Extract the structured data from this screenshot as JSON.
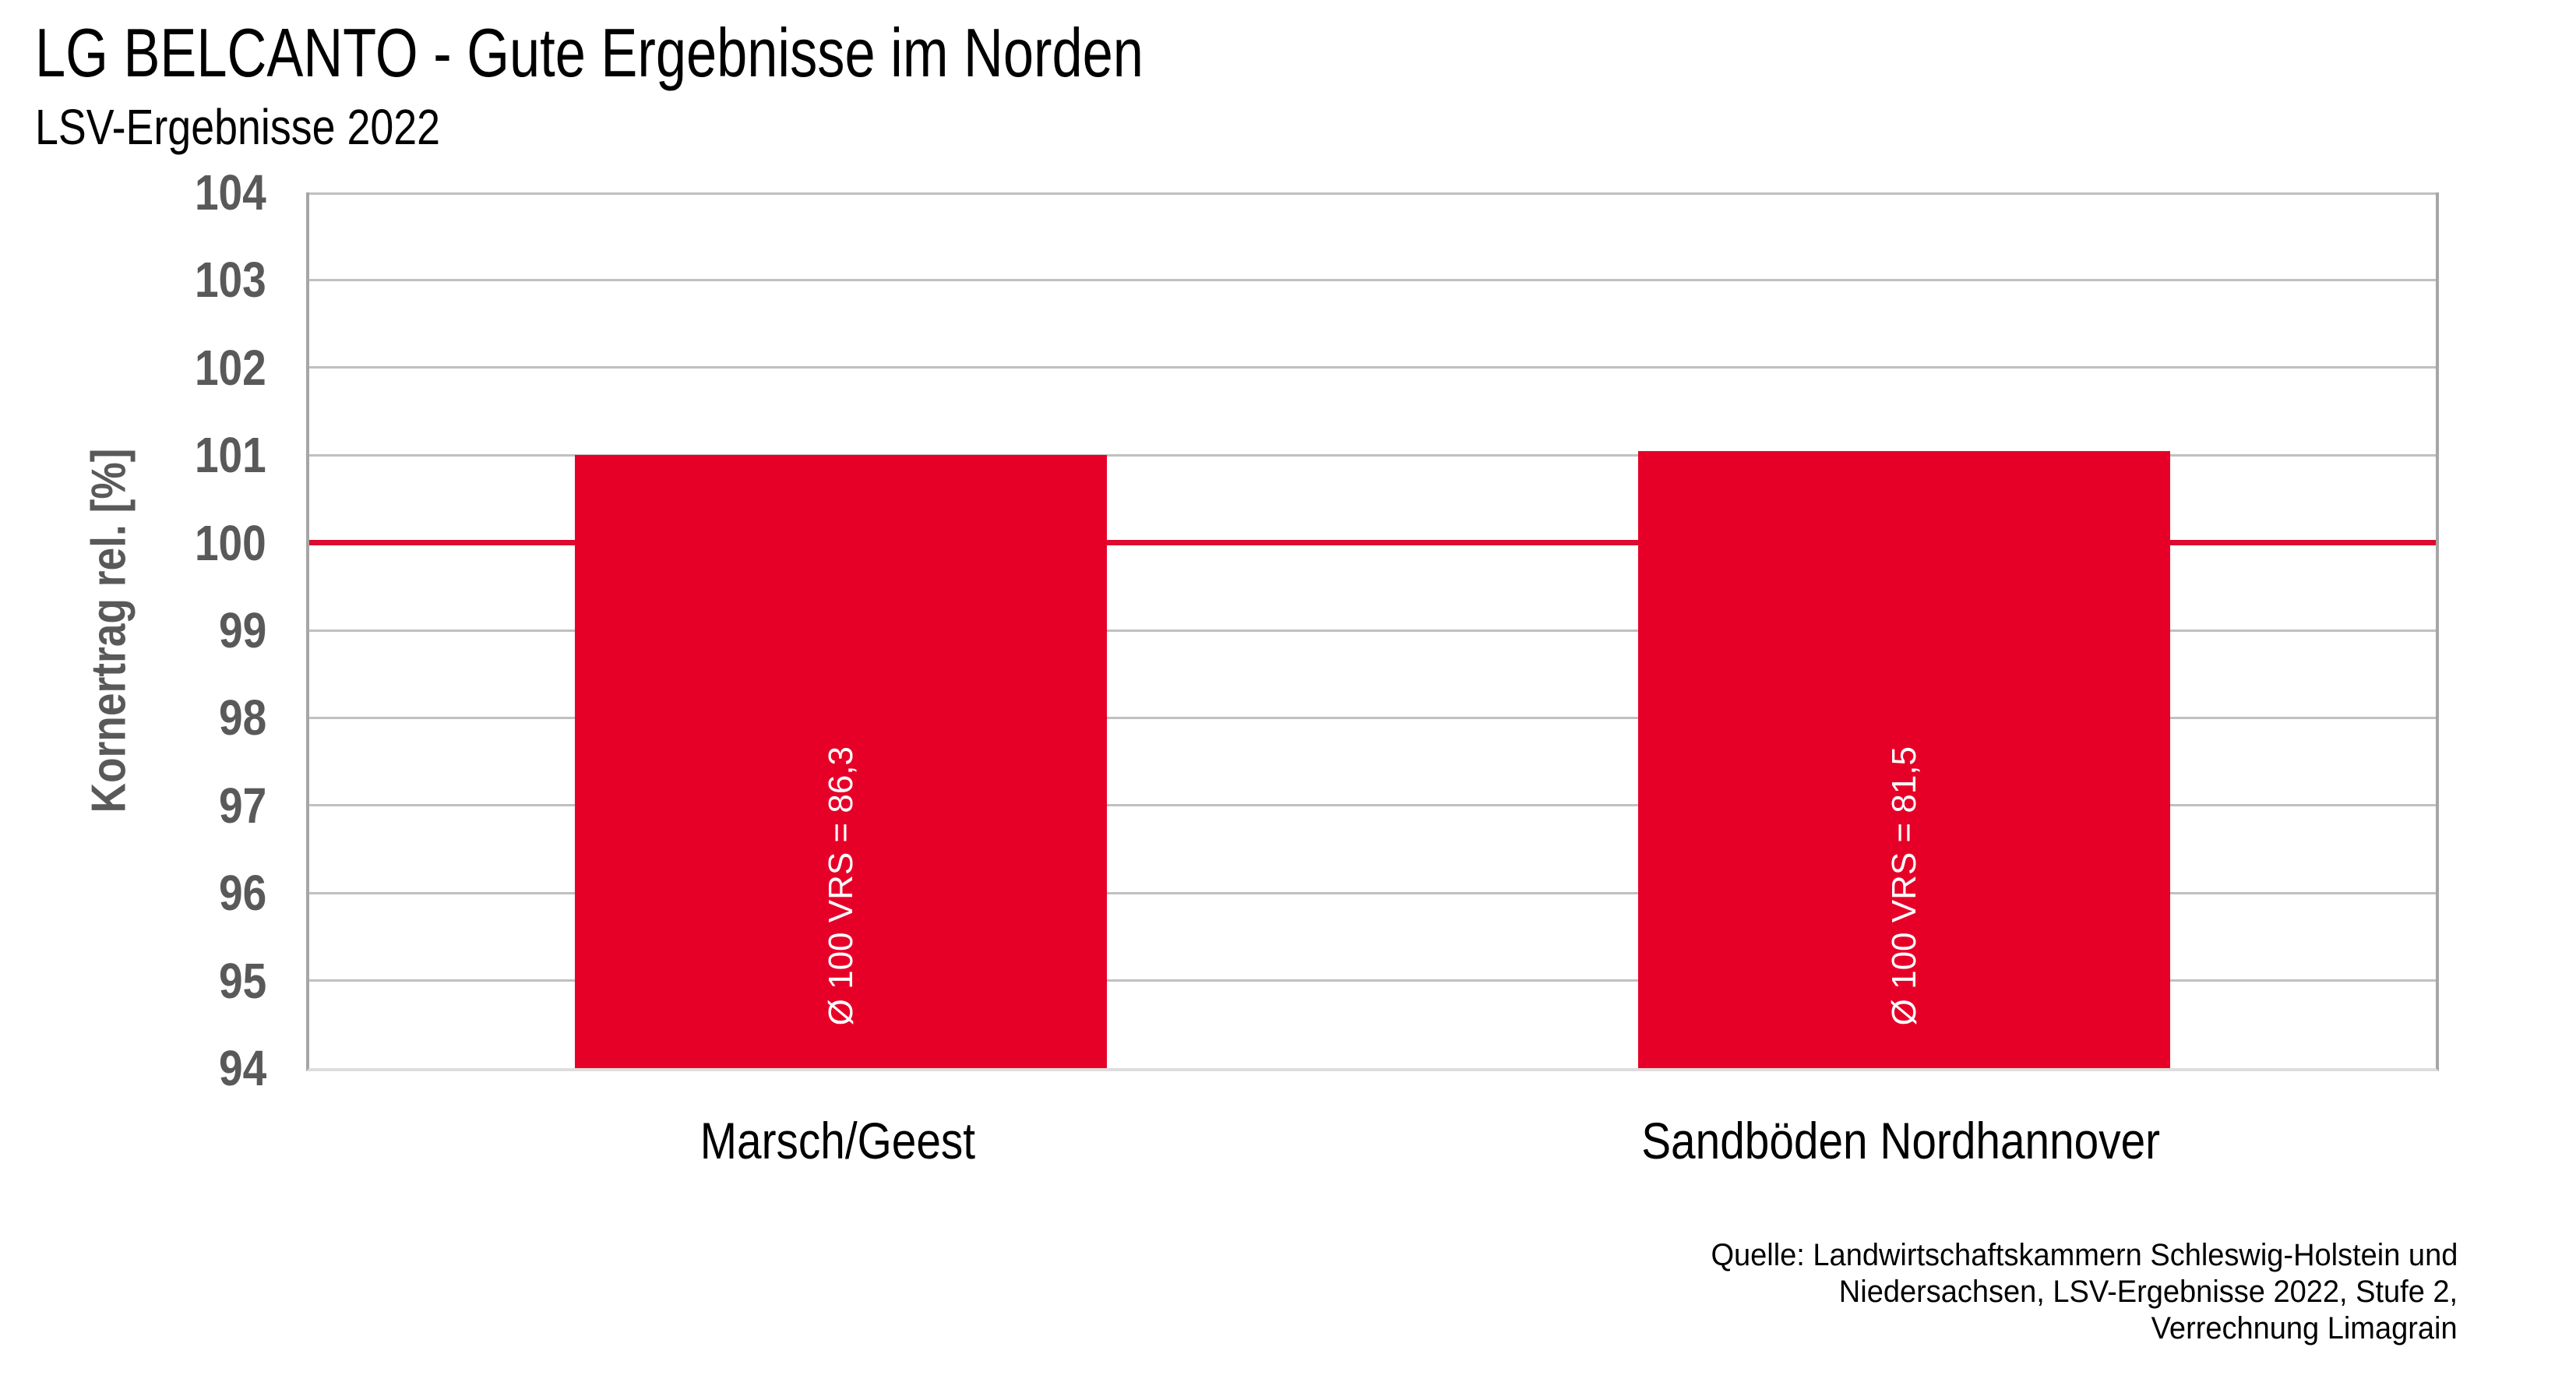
{
  "header": {
    "title": "LG BELCANTO - Gute Ergebnisse im Norden",
    "subtitle": "LSV-Ergebnisse 2022"
  },
  "chart_data": {
    "type": "bar",
    "title": "LG BELCANTO - Gute Ergebnisse im Norden",
    "subtitle": "LSV-Ergebnisse 2022",
    "categories": [
      "Marsch/Geest",
      "Sandböden Nordhannover"
    ],
    "values": [
      101.0,
      101.05
    ],
    "bar_labels": [
      "Ø 100 VRS = 86,3",
      "Ø 100 VRS = 81,5"
    ],
    "xlabel": "",
    "ylabel": "Kornertrag rel. [%]",
    "ylim": [
      94,
      104
    ],
    "ytick_step": 1,
    "yticks": [
      94,
      95,
      96,
      97,
      98,
      99,
      100,
      101,
      102,
      103,
      104
    ],
    "grid": true,
    "legend": "none",
    "reference_line": {
      "value": 100,
      "color": "#DC0A2E"
    },
    "bar_color": "#E60028",
    "bar_label_color": "#FFFFFF",
    "bar_width_fraction": 0.5
  },
  "source": {
    "lines": [
      "Quelle: Landwirtschaftskammern Schleswig-Holstein und",
      "Niedersachsen, LSV-Ergebnisse 2022, Stufe 2,",
      "Verrechnung Limagrain"
    ]
  },
  "colors": {
    "background": "#FFFFFF",
    "text": "#000000",
    "axis_text": "#595959",
    "gridline": "#C0C0C0",
    "frame": "#A6A6A6",
    "baseline": "#DDDDDD"
  }
}
